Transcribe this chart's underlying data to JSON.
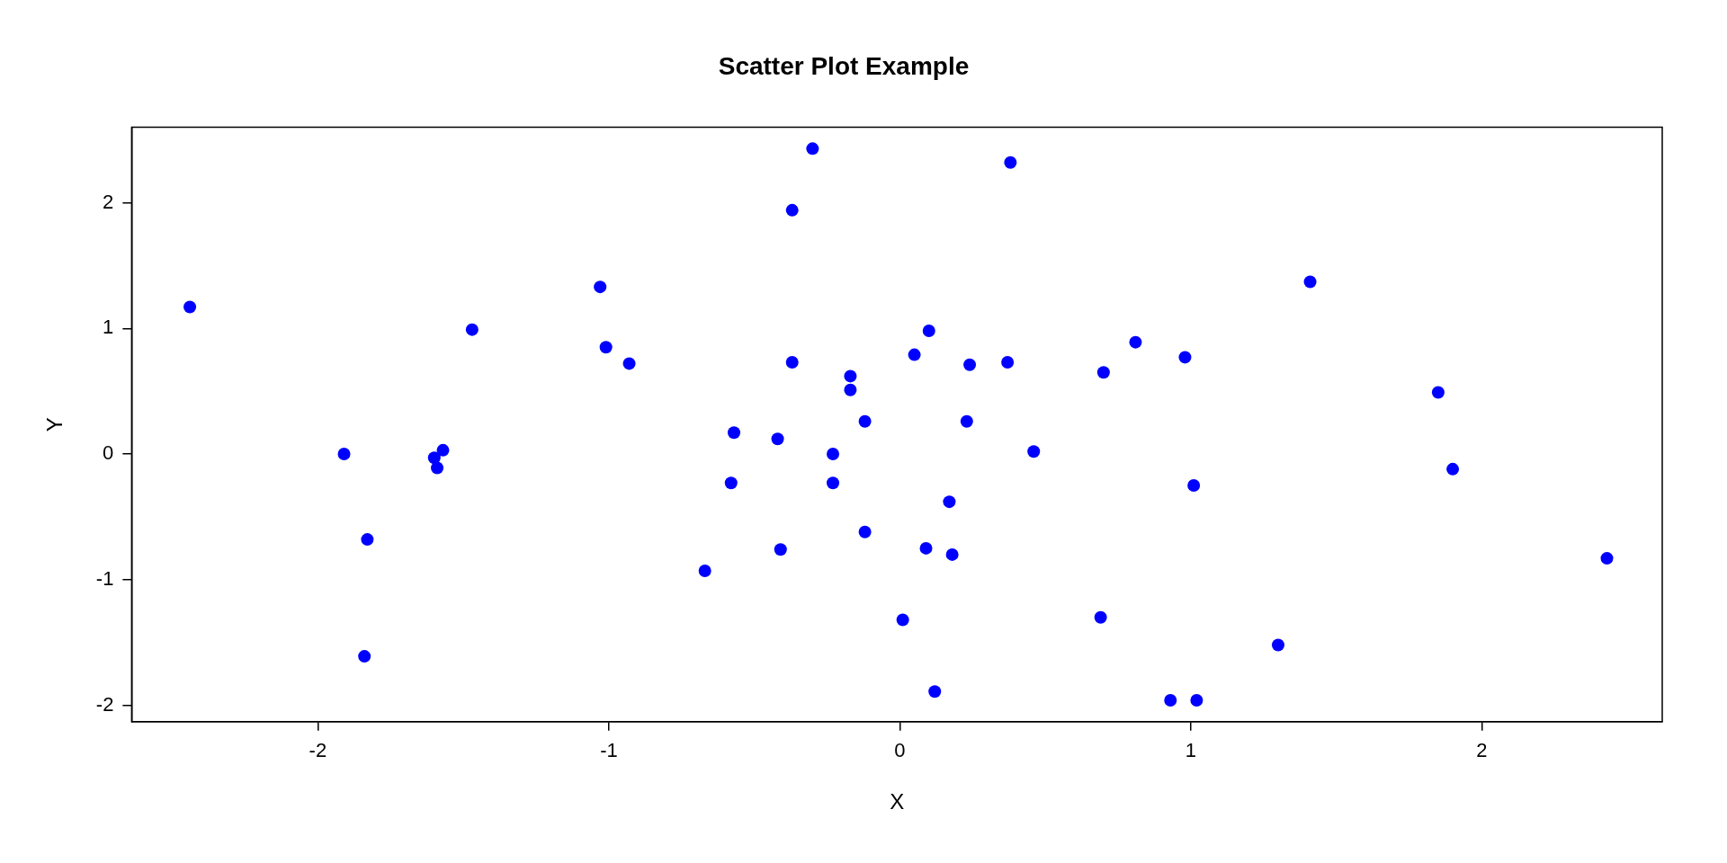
{
  "chart_data": {
    "type": "scatter",
    "title": "Scatter Plot Example",
    "xlabel": "X",
    "ylabel": "Y",
    "series": [
      {
        "color": "#0000ff",
        "x": [
          -2.44,
          -1.91,
          -1.83,
          -1.84,
          -1.6,
          -1.57,
          -1.59,
          -1.47,
          -1.03,
          -1.01,
          -0.93,
          -0.67,
          -0.58,
          -0.57,
          -0.42,
          -0.41,
          -0.37,
          -0.37,
          -0.3,
          -0.23,
          -0.23,
          -0.17,
          -0.17,
          -0.12,
          -0.12,
          0.01,
          0.05,
          0.09,
          0.1,
          0.12,
          0.17,
          0.18,
          0.23,
          0.24,
          0.37,
          0.38,
          0.46,
          0.69,
          0.7,
          0.81,
          0.93,
          0.98,
          1.01,
          1.02,
          1.3,
          1.41,
          1.85,
          1.9,
          2.43
        ],
        "values": [
          1.17,
          0.0,
          -0.68,
          -1.61,
          -0.03,
          0.03,
          -0.11,
          0.99,
          1.33,
          0.85,
          0.72,
          -0.93,
          -0.23,
          0.17,
          0.12,
          -0.76,
          0.73,
          1.94,
          2.43,
          -0.23,
          0.0,
          0.62,
          0.51,
          -0.62,
          0.26,
          -1.32,
          0.79,
          -0.75,
          0.98,
          -1.89,
          -0.38,
          -0.8,
          0.26,
          0.71,
          0.73,
          2.32,
          0.02,
          -1.3,
          0.65,
          0.89,
          -1.96,
          0.77,
          -0.25,
          -1.96,
          -1.52,
          1.37,
          0.49,
          -0.12,
          -0.83
        ]
      }
    ],
    "xlim": [
      -2.64,
      2.62
    ],
    "ylim": [
      -2.13,
      2.6
    ],
    "xticks": [
      -2,
      -1,
      0,
      1,
      2
    ],
    "yticks": [
      -2,
      -1,
      0,
      1,
      2
    ],
    "grid": false,
    "legend": false,
    "marker": "circle"
  }
}
